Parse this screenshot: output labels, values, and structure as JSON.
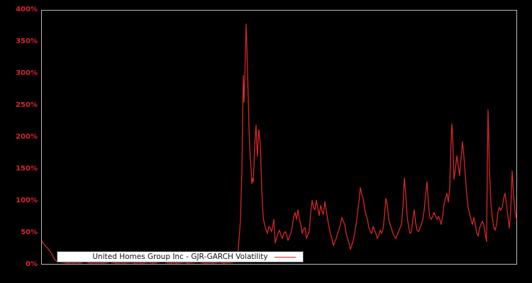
{
  "chart": {
    "background": "#000000",
    "frame_color": "#b9b9b9",
    "tick_label_color": "#d62728"
  },
  "legend": {
    "label": "United Homes Group Inc - GJR-GARCH Volatility",
    "sample_color": "#d62728"
  },
  "chart_data": {
    "type": "line",
    "title": "",
    "xlabel": "",
    "ylabel": "",
    "ylim": [
      0,
      400
    ],
    "ytick_values": [
      0,
      50,
      100,
      150,
      200,
      250,
      300,
      350,
      400
    ],
    "ytick_labels": [
      "0%",
      "50%",
      "100%",
      "150%",
      "200%",
      "250%",
      "300%",
      "350%",
      "400%"
    ],
    "xtick_labels": [],
    "grid": false,
    "legend_position": "lower center",
    "series": [
      {
        "name": "United Homes Group Inc - GJR-GARCH Volatility",
        "color": "#d62728",
        "unit": "percent",
        "x_unit": "time-index (x axis unlabeled in figure; x stored as plot pixel position)",
        "points": [
          [
            59,
            37
          ],
          [
            61,
            33
          ],
          [
            63,
            31
          ],
          [
            65,
            28
          ],
          [
            67,
            26
          ],
          [
            69,
            23
          ],
          [
            71,
            20
          ],
          [
            73,
            17
          ],
          [
            75,
            12
          ],
          [
            77,
            8
          ],
          [
            79,
            6
          ],
          [
            82,
            5
          ],
          [
            85,
            4
          ],
          [
            88,
            3.5
          ],
          [
            92,
            3
          ],
          [
            96,
            2.5
          ],
          [
            100,
            3
          ],
          [
            104,
            2.5
          ],
          [
            108,
            3
          ],
          [
            112,
            2.5
          ],
          [
            116,
            3.5
          ],
          [
            120,
            5
          ],
          [
            124,
            3
          ],
          [
            128,
            2.5
          ],
          [
            132,
            3
          ],
          [
            136,
            2.5
          ],
          [
            140,
            3
          ],
          [
            145,
            2.5
          ],
          [
            150,
            3
          ],
          [
            155,
            4
          ],
          [
            160,
            3
          ],
          [
            165,
            2.5
          ],
          [
            170,
            3
          ],
          [
            175,
            2.5
          ],
          [
            180,
            3
          ],
          [
            185,
            3.5
          ],
          [
            190,
            2.5
          ],
          [
            195,
            3
          ],
          [
            200,
            2.5
          ],
          [
            205,
            3
          ],
          [
            210,
            3.5
          ],
          [
            215,
            2.5
          ],
          [
            220,
            3
          ],
          [
            225,
            4
          ],
          [
            230,
            5
          ],
          [
            235,
            3
          ],
          [
            240,
            2.5
          ],
          [
            245,
            3
          ],
          [
            250,
            2.5
          ],
          [
            255,
            3
          ],
          [
            260,
            3.5
          ],
          [
            265,
            2.5
          ],
          [
            270,
            3
          ],
          [
            275,
            3.5
          ],
          [
            280,
            4
          ],
          [
            285,
            3
          ],
          [
            290,
            2.5
          ],
          [
            295,
            3
          ],
          [
            300,
            2.5
          ],
          [
            305,
            3
          ],
          [
            310,
            3.5
          ],
          [
            315,
            2.5
          ],
          [
            320,
            3
          ],
          [
            324,
            3
          ],
          [
            328,
            3.5
          ],
          [
            331,
            4
          ],
          [
            333,
            6
          ],
          [
            335,
            15
          ],
          [
            336,
            25
          ],
          [
            337,
            40
          ],
          [
            338,
            55
          ],
          [
            339,
            70
          ],
          [
            340,
            110
          ],
          [
            341,
            150
          ],
          [
            342,
            230
          ],
          [
            343,
            297
          ],
          [
            344,
            255
          ],
          [
            345,
            288
          ],
          [
            346,
            335
          ],
          [
            347,
            378
          ],
          [
            348,
            345
          ],
          [
            349,
            300
          ],
          [
            350,
            262
          ],
          [
            351,
            215
          ],
          [
            352,
            185
          ],
          [
            353,
            165
          ],
          [
            354,
            150
          ],
          [
            355,
            127
          ],
          [
            356,
            135
          ],
          [
            357,
            130
          ],
          [
            358,
            155
          ],
          [
            359,
            185
          ],
          [
            360,
            205
          ],
          [
            361,
            219
          ],
          [
            362,
            185
          ],
          [
            363,
            170
          ],
          [
            364,
            196
          ],
          [
            365,
            212
          ],
          [
            366,
            200
          ],
          [
            367,
            190
          ],
          [
            368,
            155
          ],
          [
            369,
            120
          ],
          [
            370,
            95
          ],
          [
            371,
            75
          ],
          [
            372,
            68
          ],
          [
            373,
            63
          ],
          [
            375,
            55
          ],
          [
            377,
            49
          ],
          [
            379,
            60
          ],
          [
            381,
            58
          ],
          [
            383,
            52
          ],
          [
            385,
            63
          ],
          [
            386,
            71
          ],
          [
            388,
            34
          ],
          [
            390,
            42
          ],
          [
            392,
            49
          ],
          [
            394,
            54
          ],
          [
            396,
            46
          ],
          [
            398,
            41
          ],
          [
            400,
            49
          ],
          [
            402,
            52
          ],
          [
            404,
            47
          ],
          [
            406,
            38
          ],
          [
            408,
            44
          ],
          [
            410,
            49
          ],
          [
            412,
            60
          ],
          [
            414,
            75
          ],
          [
            416,
            82
          ],
          [
            418,
            71
          ],
          [
            420,
            86
          ],
          [
            422,
            72
          ],
          [
            424,
            63
          ],
          [
            426,
            49
          ],
          [
            428,
            56
          ],
          [
            430,
            58
          ],
          [
            432,
            41
          ],
          [
            434,
            47
          ],
          [
            436,
            52
          ],
          [
            438,
            82
          ],
          [
            440,
            101
          ],
          [
            442,
            90
          ],
          [
            444,
            86
          ],
          [
            446,
            101
          ],
          [
            448,
            88
          ],
          [
            450,
            77
          ],
          [
            452,
            93
          ],
          [
            454,
            84
          ],
          [
            456,
            79
          ],
          [
            458,
            99
          ],
          [
            460,
            85
          ],
          [
            462,
            71
          ],
          [
            464,
            58
          ],
          [
            466,
            47
          ],
          [
            468,
            41
          ],
          [
            470,
            30
          ],
          [
            472,
            36
          ],
          [
            474,
            41
          ],
          [
            476,
            49
          ],
          [
            478,
            56
          ],
          [
            480,
            63
          ],
          [
            482,
            74
          ],
          [
            484,
            68
          ],
          [
            486,
            63
          ],
          [
            488,
            49
          ],
          [
            490,
            41
          ],
          [
            492,
            34
          ],
          [
            494,
            24
          ],
          [
            496,
            31
          ],
          [
            498,
            38
          ],
          [
            500,
            49
          ],
          [
            502,
            63
          ],
          [
            504,
            80
          ],
          [
            506,
            99
          ],
          [
            508,
            121
          ],
          [
            510,
            110
          ],
          [
            512,
            104
          ],
          [
            514,
            88
          ],
          [
            516,
            78
          ],
          [
            518,
            71
          ],
          [
            520,
            58
          ],
          [
            522,
            52
          ],
          [
            524,
            49
          ],
          [
            526,
            60
          ],
          [
            528,
            54
          ],
          [
            530,
            49
          ],
          [
            532,
            41
          ],
          [
            534,
            46
          ],
          [
            536,
            54
          ],
          [
            538,
            49
          ],
          [
            540,
            56
          ],
          [
            542,
            76
          ],
          [
            544,
            104
          ],
          [
            546,
            93
          ],
          [
            548,
            71
          ],
          [
            550,
            63
          ],
          [
            552,
            56
          ],
          [
            554,
            49
          ],
          [
            556,
            44
          ],
          [
            558,
            41
          ],
          [
            560,
            47
          ],
          [
            562,
            52
          ],
          [
            564,
            58
          ],
          [
            566,
            63
          ],
          [
            568,
            90
          ],
          [
            570,
            136
          ],
          [
            572,
            110
          ],
          [
            574,
            76
          ],
          [
            576,
            60
          ],
          [
            578,
            49
          ],
          [
            580,
            52
          ],
          [
            582,
            71
          ],
          [
            584,
            86
          ],
          [
            586,
            65
          ],
          [
            588,
            54
          ],
          [
            590,
            52
          ],
          [
            592,
            58
          ],
          [
            594,
            63
          ],
          [
            596,
            71
          ],
          [
            598,
            85
          ],
          [
            600,
            110
          ],
          [
            602,
            130
          ],
          [
            604,
            95
          ],
          [
            606,
            74
          ],
          [
            608,
            71
          ],
          [
            610,
            76
          ],
          [
            612,
            82
          ],
          [
            614,
            76
          ],
          [
            616,
            71
          ],
          [
            618,
            76
          ],
          [
            620,
            71
          ],
          [
            622,
            63
          ],
          [
            624,
            76
          ],
          [
            626,
            95
          ],
          [
            628,
            104
          ],
          [
            630,
            112
          ],
          [
            632,
            98
          ],
          [
            634,
            120
          ],
          [
            635,
            160
          ],
          [
            636,
            195
          ],
          [
            637,
            221
          ],
          [
            638,
            205
          ],
          [
            639,
            170
          ],
          [
            640,
            134
          ],
          [
            642,
            150
          ],
          [
            644,
            171
          ],
          [
            646,
            155
          ],
          [
            648,
            140
          ],
          [
            650,
            168
          ],
          [
            652,
            193
          ],
          [
            654,
            170
          ],
          [
            656,
            140
          ],
          [
            658,
            110
          ],
          [
            660,
            90
          ],
          [
            662,
            80
          ],
          [
            664,
            71
          ],
          [
            666,
            63
          ],
          [
            668,
            74
          ],
          [
            670,
            63
          ],
          [
            672,
            50
          ],
          [
            674,
            45
          ],
          [
            676,
            57
          ],
          [
            678,
            63
          ],
          [
            680,
            68
          ],
          [
            682,
            63
          ],
          [
            684,
            48
          ],
          [
            686,
            36
          ],
          [
            687,
            150
          ],
          [
            688,
            243
          ],
          [
            689,
            200
          ],
          [
            690,
            150
          ],
          [
            692,
            97
          ],
          [
            694,
            75
          ],
          [
            696,
            60
          ],
          [
            698,
            54
          ],
          [
            700,
            63
          ],
          [
            702,
            82
          ],
          [
            704,
            90
          ],
          [
            706,
            85
          ],
          [
            708,
            90
          ],
          [
            710,
            104
          ],
          [
            712,
            112
          ],
          [
            714,
            95
          ],
          [
            716,
            76
          ],
          [
            718,
            57
          ],
          [
            720,
            85
          ],
          [
            722,
            147
          ],
          [
            724,
            110
          ],
          [
            726,
            85
          ],
          [
            728,
            71
          ],
          [
            729,
            70
          ]
        ]
      }
    ]
  }
}
